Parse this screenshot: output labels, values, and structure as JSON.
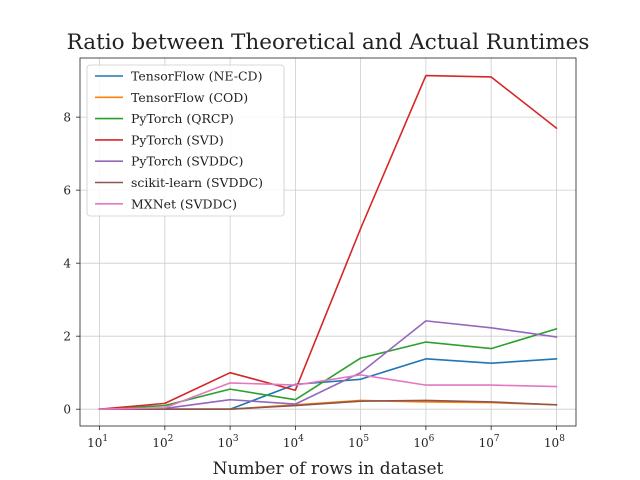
{
  "chart_data": {
    "type": "line",
    "title": "Ratio between Theoretical and Actual Runtimes",
    "xlabel": "Number of rows in dataset",
    "ylabel": "",
    "x_scale": "log",
    "x": [
      10,
      100,
      1000,
      10000,
      100000,
      1000000,
      10000000,
      100000000
    ],
    "x_tick_labels": [
      {
        "base": "10",
        "exp": "1"
      },
      {
        "base": "10",
        "exp": "2"
      },
      {
        "base": "10",
        "exp": "3"
      },
      {
        "base": "10",
        "exp": "4"
      },
      {
        "base": "10",
        "exp": "5"
      },
      {
        "base": "10",
        "exp": "6"
      },
      {
        "base": "10",
        "exp": "7"
      },
      {
        "base": "10",
        "exp": "8"
      }
    ],
    "y_ticks": [
      0,
      2,
      4,
      6,
      8
    ],
    "ylim": [
      -0.46,
      9.62
    ],
    "grid": true,
    "legend_position": "upper-left",
    "series": [
      {
        "name": "TensorFlow (NE-CD)",
        "color": "#1f77b4",
        "values": [
          0,
          0,
          0,
          0.68,
          0.82,
          1.38,
          1.26,
          1.38
        ]
      },
      {
        "name": "TensorFlow (COD)",
        "color": "#ff7f0e",
        "values": [
          0,
          0,
          0,
          0.12,
          0.24,
          0.2,
          0.18,
          0.12
        ]
      },
      {
        "name": "PyTorch (QRCP)",
        "color": "#2ca02c",
        "values": [
          0,
          0.1,
          0.55,
          0.26,
          1.4,
          1.84,
          1.66,
          2.2
        ]
      },
      {
        "name": "PyTorch (SVD)",
        "color": "#d62728",
        "values": [
          0,
          0.16,
          1.0,
          0.52,
          4.95,
          9.14,
          9.1,
          7.7
        ]
      },
      {
        "name": "PyTorch (SVDDC)",
        "color": "#9467bd",
        "values": [
          0,
          0.02,
          0.26,
          0.14,
          1.0,
          2.42,
          2.23,
          1.98
        ]
      },
      {
        "name": "scikit-learn (SVDDC)",
        "color": "#8c564b",
        "values": [
          0,
          0,
          0,
          0.1,
          0.22,
          0.24,
          0.2,
          0.12
        ]
      },
      {
        "name": "MXNet (SVDDC)",
        "color": "#e377c2",
        "values": [
          0,
          0.04,
          0.72,
          0.66,
          0.94,
          0.66,
          0.66,
          0.62
        ]
      }
    ]
  }
}
